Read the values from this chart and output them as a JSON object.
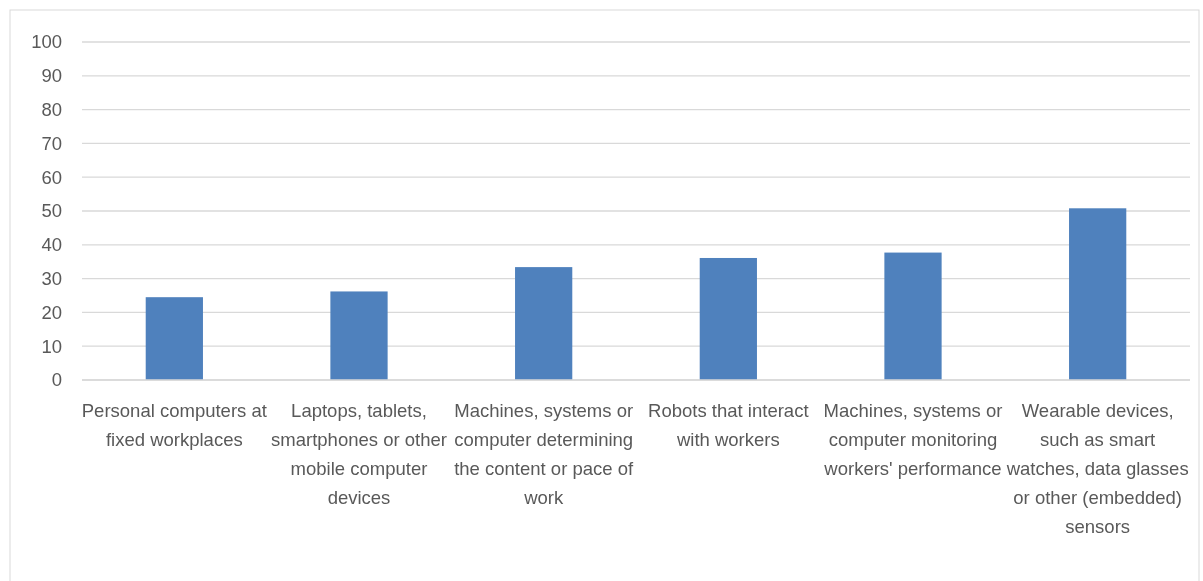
{
  "chart_data": {
    "type": "bar",
    "categories": [
      "Personal computers at fixed workplaces",
      "Laptops, tablets, smartphones or other mobile computer devices",
      "Machines, systems or computer determining the content or pace of work",
      "Robots that interact with workers",
      "Machines, systems or computer monitoring workers' performance",
      "Wearable devices, such as smart watches, data glasses or other (embedded) sensors"
    ],
    "values": [
      24.5,
      26.2,
      33.4,
      36.1,
      37.7,
      50.8
    ],
    "color": "#4f81bd",
    "ylim": [
      0,
      100
    ],
    "yticks": [
      0,
      10,
      20,
      30,
      40,
      50,
      60,
      70,
      80,
      90,
      100
    ],
    "grid": "y"
  }
}
